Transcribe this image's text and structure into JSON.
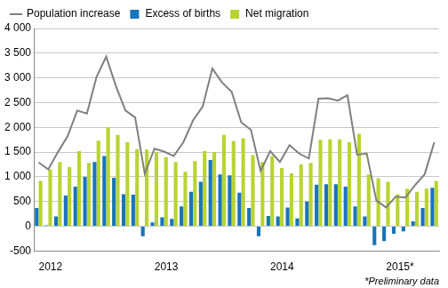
{
  "chart_data": {
    "type": "bar",
    "categories": [
      "2012",
      null,
      null,
      null,
      null,
      null,
      null,
      null,
      null,
      null,
      null,
      null,
      "2013",
      null,
      null,
      null,
      null,
      null,
      null,
      null,
      null,
      null,
      null,
      null,
      "2014",
      null,
      null,
      null,
      null,
      null,
      null,
      null,
      null,
      null,
      null,
      null,
      "2015*",
      null,
      null,
      null,
      null,
      null
    ],
    "series": [
      {
        "name": "Excess of births",
        "type": "bar",
        "color": "#1a74b8",
        "values": [
          370,
          20,
          200,
          620,
          800,
          1000,
          1300,
          1420,
          980,
          650,
          640,
          -200,
          80,
          180,
          150,
          400,
          700,
          900,
          1340,
          1050,
          1030,
          680,
          370,
          -200,
          210,
          200,
          380,
          160,
          500,
          840,
          850,
          850,
          800,
          400,
          200,
          -380,
          -300,
          -150,
          -100,
          100,
          370,
          780
        ]
      },
      {
        "name": "Net migration",
        "type": "bar",
        "color": "#b8d432",
        "values": [
          920,
          1150,
          1300,
          1200,
          1520,
          1280,
          1730,
          2000,
          1850,
          1700,
          1560,
          1550,
          1500,
          1400,
          1300,
          1100,
          1320,
          1520,
          1500,
          1850,
          1720,
          1780,
          1440,
          1300,
          1420,
          1180,
          1070,
          1250,
          1280,
          1750,
          1760,
          1760,
          1700,
          1870,
          1050,
          970,
          900,
          650,
          760,
          700,
          760,
          920
        ]
      },
      {
        "name": "Population increase",
        "type": "line",
        "color": "#7f7f7f",
        "values": [
          1290,
          1150,
          1500,
          1820,
          2340,
          2280,
          3020,
          3430,
          2840,
          2340,
          2200,
          1060,
          1570,
          1510,
          1420,
          1700,
          2140,
          2420,
          3190,
          2910,
          2720,
          2100,
          1950,
          1120,
          1520,
          1300,
          1640,
          1470,
          1370,
          2580,
          2590,
          2540,
          2650,
          1450,
          1470,
          520,
          380,
          600,
          580,
          830,
          1050,
          1700
        ]
      }
    ],
    "ylim": [
      -500,
      4000
    ],
    "yticks": [
      -500,
      0,
      500,
      {
        "value": 1000,
        "label": "1 000"
      },
      {
        "value": 1500,
        "label": "1 500"
      },
      {
        "value": 2000,
        "label": "2 000"
      },
      {
        "value": 2500,
        "label": "2 500"
      },
      {
        "value": 3000,
        "label": "3 000"
      },
      {
        "value": 3500,
        "label": "3 500"
      },
      {
        "value": 4000,
        "label": "4 000"
      }
    ],
    "grid": true,
    "legend": "top",
    "annotations": [
      "*Preliminary data"
    ]
  }
}
